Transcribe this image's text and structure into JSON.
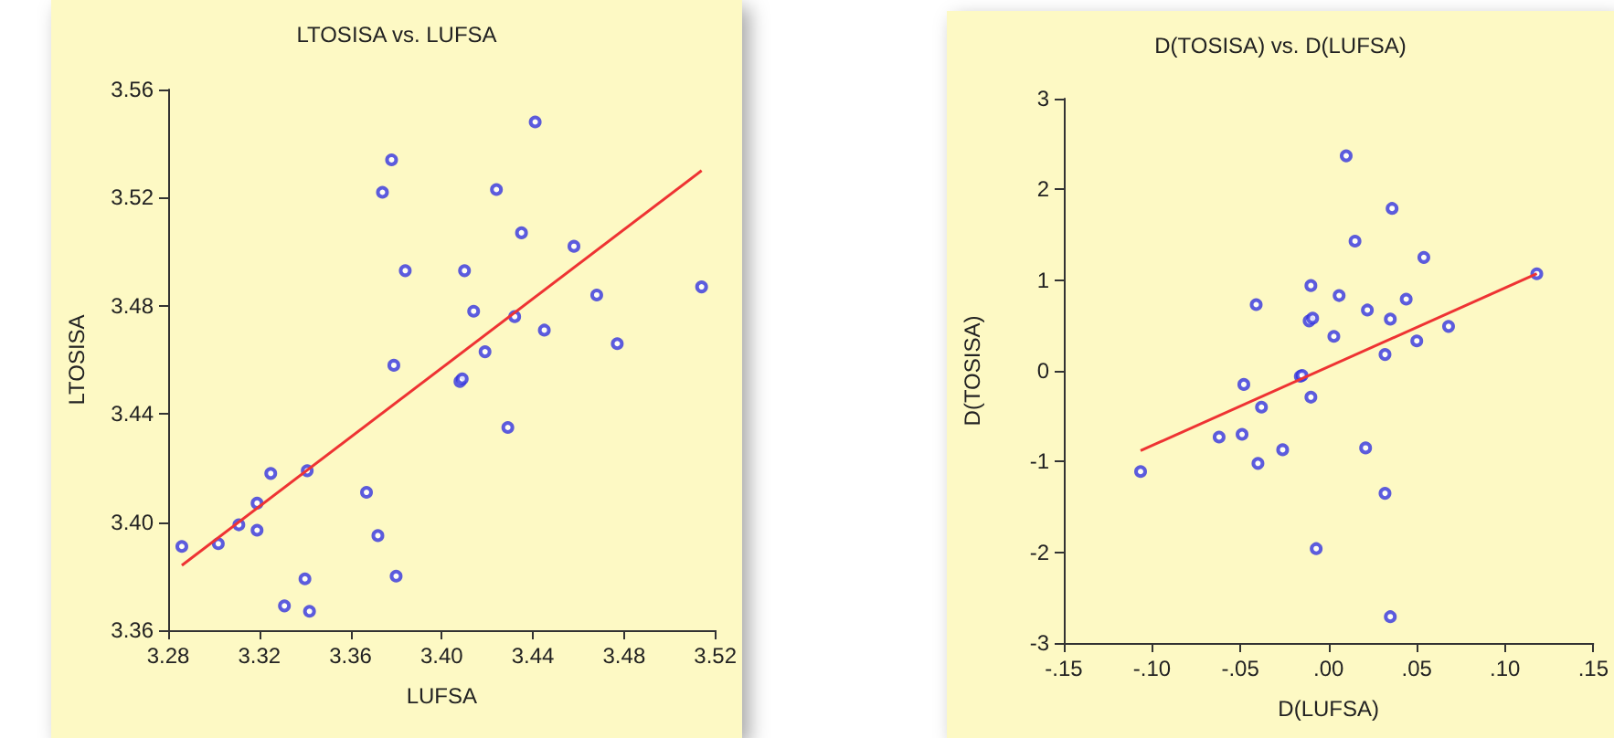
{
  "chart_data": [
    {
      "type": "scatter",
      "title": "LTOSISA vs. LUFSA",
      "xlabel": "LUFSA",
      "ylabel": "LTOSISA",
      "grid": false,
      "xlim": [
        3.28,
        3.52
      ],
      "xticks": [
        {
          "value": 3.28,
          "label": "3.28"
        },
        {
          "value": 3.32,
          "label": "3.32"
        },
        {
          "value": 3.36,
          "label": "3.36"
        },
        {
          "value": 3.4,
          "label": "3.40"
        },
        {
          "value": 3.44,
          "label": "3.44"
        },
        {
          "value": 3.48,
          "label": "3.48"
        },
        {
          "value": 3.52,
          "label": "3.52"
        }
      ],
      "ylim": [
        3.36,
        3.56
      ],
      "yticks": [
        {
          "value": 3.36,
          "label": "3.36"
        },
        {
          "value": 3.4,
          "label": "3.40"
        },
        {
          "value": 3.44,
          "label": "3.44"
        },
        {
          "value": 3.48,
          "label": "3.48"
        },
        {
          "value": 3.52,
          "label": "3.52"
        },
        {
          "value": 3.56,
          "label": "3.56"
        }
      ],
      "series": [
        {
          "marker": "circle",
          "color": "#3333dd",
          "x": [
            3.286,
            3.302,
            3.311,
            3.319,
            3.319,
            3.325,
            3.331,
            3.34,
            3.341,
            3.342,
            3.367,
            3.372,
            3.374,
            3.378,
            3.379,
            3.38,
            3.384,
            3.408,
            3.409,
            3.41,
            3.414,
            3.419,
            3.424,
            3.429,
            3.432,
            3.435,
            3.441,
            3.445,
            3.458,
            3.468,
            3.477,
            3.514
          ],
          "values": [
            3.391,
            3.392,
            3.399,
            3.397,
            3.407,
            3.418,
            3.369,
            3.379,
            3.419,
            3.367,
            3.411,
            3.395,
            3.522,
            3.534,
            3.458,
            3.38,
            3.493,
            3.452,
            3.453,
            3.493,
            3.478,
            3.463,
            3.523,
            3.435,
            3.476,
            3.507,
            3.548,
            3.471,
            3.502,
            3.484,
            3.466,
            3.487
          ]
        },
        {
          "type": "line",
          "marker": "none",
          "color": "#ee3333",
          "line_style": "solid",
          "x": [
            3.286,
            3.514
          ],
          "values": [
            3.384,
            3.53
          ]
        }
      ]
    },
    {
      "type": "scatter",
      "title": "D(TOSISA) vs. D(LUFSA)",
      "xlabel": "D(LUFSA)",
      "ylabel": "D(TOSISA)",
      "grid": false,
      "xlim": [
        -0.15,
        0.15
      ],
      "xticks": [
        {
          "value": -0.15,
          "label": "-.15"
        },
        {
          "value": -0.1,
          "label": "-.10"
        },
        {
          "value": -0.05,
          "label": "-.05"
        },
        {
          "value": 0,
          "label": ".00"
        },
        {
          "value": 0.05,
          "label": ".05"
        },
        {
          "value": 0.1,
          "label": ".10"
        },
        {
          "value": 0.15,
          "label": ".15"
        }
      ],
      "ylim": [
        -3,
        3
      ],
      "yticks": [
        -3,
        -2,
        -1,
        0,
        1,
        2,
        3
      ],
      "series": [
        {
          "marker": "circle",
          "color": "#3333dd",
          "x": [
            -0.1065,
            -0.062,
            -0.049,
            -0.048,
            -0.041,
            -0.04,
            -0.038,
            -0.026,
            -0.016,
            -0.015,
            -0.011,
            -0.01,
            -0.01,
            -0.009,
            -0.007,
            0.003,
            0.006,
            0.01,
            0.015,
            0.021,
            0.022,
            0.032,
            0.032,
            0.035,
            0.035,
            0.036,
            0.044,
            0.05,
            0.054,
            0.068,
            0.118
          ],
          "values": [
            -1.11,
            -0.73,
            -0.7,
            -0.15,
            0.73,
            -1.02,
            -0.4,
            -0.87,
            -0.06,
            -0.05,
            0.55,
            -0.29,
            0.94,
            0.58,
            -1.96,
            0.38,
            0.83,
            2.37,
            1.43,
            -0.85,
            0.67,
            0.18,
            -1.35,
            0.57,
            -2.71,
            1.79,
            0.79,
            0.33,
            1.25,
            0.49,
            1.07
          ]
        },
        {
          "type": "line",
          "marker": "none",
          "color": "#ee3333",
          "line_style": "solid",
          "x": [
            -0.1065,
            0.118
          ],
          "values": [
            -0.88,
            1.07
          ]
        }
      ]
    }
  ]
}
